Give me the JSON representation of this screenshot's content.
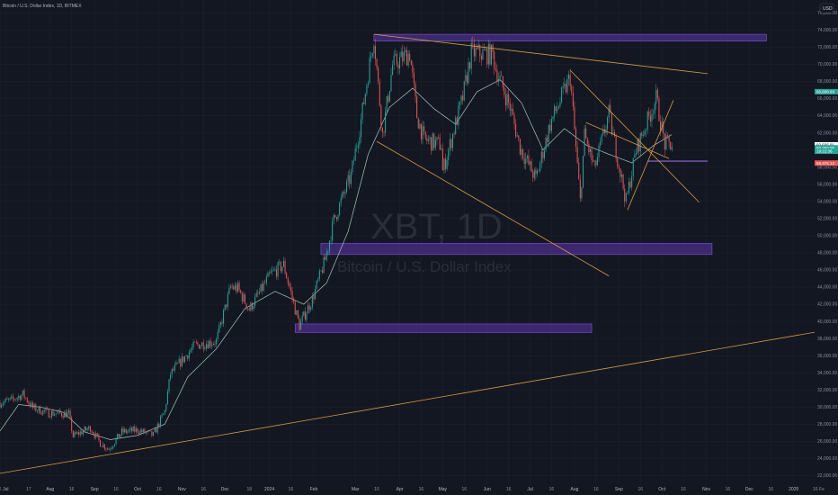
{
  "header": {
    "symbol_title": "Bitcoin / U.S. Dollar Index, 1D, BITMEX",
    "currency_button": "USD"
  },
  "watermark": {
    "ticker": "XBT, 1D",
    "name": "Bitcoin / U.S. Dollar Index"
  },
  "colors": {
    "background": "#131722",
    "candle_up": "#26a69a",
    "candle_down": "#ef5350",
    "ma_line": "#9ec9b9",
    "trendline": "#d9983a",
    "zone_fill": "#4a2f8c",
    "zone_border": "#7e57c2",
    "grid": "#1e222d"
  },
  "price_tags": [
    {
      "label": "66,808.60",
      "value": 66800,
      "color": "#26a69a"
    },
    {
      "label": "60,606.81",
      "value": 60600,
      "color": "#ffffff"
    },
    {
      "label": "60,250.00",
      "value": 60250,
      "color": "#26a69a"
    },
    {
      "label": "19:21:36",
      "value": 59850,
      "color": "#26a69a"
    },
    {
      "label": "58,476.13",
      "value": 58470,
      "color": "#ef5350"
    }
  ],
  "chart_data": {
    "type": "candlestick",
    "title": "Bitcoin / U.S. Dollar Index, 1D, BITMEX",
    "y_axis": {
      "ylim": [
        21000,
        77500
      ],
      "ticks": [
        22000,
        24000,
        26000,
        28000,
        30000,
        32000,
        34000,
        36000,
        38000,
        40000,
        42000,
        44000,
        46000,
        48000,
        50000,
        52000,
        54000,
        56000,
        58000,
        60000,
        62000,
        64000,
        66000,
        68000,
        70000,
        72000,
        74000,
        76000
      ],
      "tick_labels": [
        "22,000.00",
        "24,000.00",
        "26,000.00",
        "28,000.00",
        "30,000.00",
        "32,000.00",
        "34,000.00",
        "36,000.00",
        "38,000.00",
        "40,000.00",
        "42,000.00",
        "44,000.00",
        "46,000.00",
        "48,000.00",
        "50,000.00",
        "52,000.00",
        "54,000.00",
        "56,000.00",
        "58,000.00",
        "60,000.00",
        "62,000.00",
        "64,000.00",
        "66,000.00",
        "68,000.00",
        "70,000.00",
        "72,000.00",
        "74,000.00",
        "76,000.00"
      ]
    },
    "x_axis": {
      "range": [
        "2023-06-27",
        "2025-01-20"
      ],
      "ticks": [
        {
          "date": "2023-06-27",
          "label": "6"
        },
        {
          "date": "2023-07-01",
          "label": "Jul"
        },
        {
          "date": "2023-07-17",
          "label": "17"
        },
        {
          "date": "2023-08-01",
          "label": "Aug"
        },
        {
          "date": "2023-08-16",
          "label": "16"
        },
        {
          "date": "2023-09-01",
          "label": "Sep"
        },
        {
          "date": "2023-09-16",
          "label": "16"
        },
        {
          "date": "2023-10-01",
          "label": "Oct"
        },
        {
          "date": "2023-10-16",
          "label": "16"
        },
        {
          "date": "2023-11-01",
          "label": "Nov"
        },
        {
          "date": "2023-11-16",
          "label": "16"
        },
        {
          "date": "2023-12-01",
          "label": "Dec"
        },
        {
          "date": "2023-12-18",
          "label": "18"
        },
        {
          "date": "2024-01-01",
          "label": "2024"
        },
        {
          "date": "2024-01-16",
          "label": "16"
        },
        {
          "date": "2024-02-01",
          "label": "Feb"
        },
        {
          "date": "2024-03-01",
          "label": "Mar"
        },
        {
          "date": "2024-03-16",
          "label": "16"
        },
        {
          "date": "2024-04-01",
          "label": "Apr"
        },
        {
          "date": "2024-04-16",
          "label": "16"
        },
        {
          "date": "2024-05-01",
          "label": "May"
        },
        {
          "date": "2024-05-16",
          "label": "16"
        },
        {
          "date": "2024-06-01",
          "label": "Jun"
        },
        {
          "date": "2024-06-16",
          "label": "16"
        },
        {
          "date": "2024-07-01",
          "label": "Jul"
        },
        {
          "date": "2024-07-16",
          "label": "16"
        },
        {
          "date": "2024-08-01",
          "label": "Aug"
        },
        {
          "date": "2024-08-16",
          "label": "16"
        },
        {
          "date": "2024-09-01",
          "label": "Sep"
        },
        {
          "date": "2024-09-16",
          "label": "16"
        },
        {
          "date": "2024-10-01",
          "label": "Oct"
        },
        {
          "date": "2024-10-16",
          "label": "16"
        },
        {
          "date": "2024-11-01",
          "label": "Nov"
        },
        {
          "date": "2024-11-16",
          "label": "16"
        },
        {
          "date": "2024-12-01",
          "label": "Dec"
        },
        {
          "date": "2024-12-16",
          "label": "16"
        },
        {
          "date": "2025-01-01",
          "label": "2025"
        },
        {
          "date": "2025-01-16",
          "label": "16"
        }
      ],
      "trailing_label": "Fe"
    },
    "price_keypoints": [
      [
        "2023-06-27",
        30500
      ],
      [
        "2023-07-05",
        30800
      ],
      [
        "2023-07-13",
        31500
      ],
      [
        "2023-07-20",
        29900
      ],
      [
        "2023-07-31",
        29300
      ],
      [
        "2023-08-14",
        29200
      ],
      [
        "2023-08-17",
        26600
      ],
      [
        "2023-08-29",
        27600
      ],
      [
        "2023-09-05",
        25800
      ],
      [
        "2023-09-11",
        25100
      ],
      [
        "2023-09-20",
        27100
      ],
      [
        "2023-10-01",
        27300
      ],
      [
        "2023-10-12",
        26700
      ],
      [
        "2023-10-20",
        29500
      ],
      [
        "2023-10-24",
        33900
      ],
      [
        "2023-11-10",
        37200
      ],
      [
        "2023-11-25",
        37700
      ],
      [
        "2023-12-05",
        44000
      ],
      [
        "2023-12-10",
        43800
      ],
      [
        "2023-12-18",
        41400
      ],
      [
        "2024-01-02",
        45500
      ],
      [
        "2024-01-11",
        46600
      ],
      [
        "2024-01-22",
        39500
      ],
      [
        "2024-01-31",
        42600
      ],
      [
        "2024-02-09",
        47200
      ],
      [
        "2024-02-15",
        51800
      ],
      [
        "2024-02-27",
        57000
      ],
      [
        "2024-03-05",
        63500
      ],
      [
        "2024-03-14",
        73300
      ],
      [
        "2024-03-20",
        61800
      ],
      [
        "2024-03-27",
        69900
      ],
      [
        "2024-04-08",
        71300
      ],
      [
        "2024-04-13",
        64000
      ],
      [
        "2024-04-18",
        61200
      ],
      [
        "2024-04-30",
        60600
      ],
      [
        "2024-05-01",
        57500
      ],
      [
        "2024-05-15",
        66100
      ],
      [
        "2024-05-21",
        71400
      ],
      [
        "2024-06-05",
        71100
      ],
      [
        "2024-06-07",
        69500
      ],
      [
        "2024-06-17",
        65000
      ],
      [
        "2024-06-24",
        60300
      ],
      [
        "2024-07-05",
        56600
      ],
      [
        "2024-07-15",
        63000
      ],
      [
        "2024-07-29",
        68500
      ],
      [
        "2024-08-05",
        54000
      ],
      [
        "2024-08-08",
        61700
      ],
      [
        "2024-08-15",
        57800
      ],
      [
        "2024-08-25",
        64200
      ],
      [
        "2024-09-06",
        54000
      ],
      [
        "2024-09-13",
        60000
      ],
      [
        "2024-09-27",
        66000
      ],
      [
        "2024-10-03",
        60700
      ],
      [
        "2024-10-08",
        60600
      ]
    ],
    "moving_average_keypoints": [
      [
        "2023-06-27",
        27200
      ],
      [
        "2023-07-10",
        30300
      ],
      [
        "2023-07-25",
        30000
      ],
      [
        "2023-08-10",
        29400
      ],
      [
        "2023-08-25",
        27100
      ],
      [
        "2023-09-12",
        26200
      ],
      [
        "2023-10-01",
        26700
      ],
      [
        "2023-10-20",
        28000
      ],
      [
        "2023-11-05",
        33500
      ],
      [
        "2023-11-25",
        36800
      ],
      [
        "2023-12-15",
        41500
      ],
      [
        "2024-01-05",
        43500
      ],
      [
        "2024-01-25",
        42000
      ],
      [
        "2024-02-10",
        44500
      ],
      [
        "2024-02-25",
        50500
      ],
      [
        "2024-03-10",
        59500
      ],
      [
        "2024-03-25",
        65000
      ],
      [
        "2024-04-10",
        67200
      ],
      [
        "2024-04-25",
        64800
      ],
      [
        "2024-05-10",
        63000
      ],
      [
        "2024-05-25",
        66800
      ],
      [
        "2024-06-10",
        68200
      ],
      [
        "2024-06-25",
        65500
      ],
      [
        "2024-07-10",
        60000
      ],
      [
        "2024-07-25",
        62500
      ],
      [
        "2024-08-10",
        60500
      ],
      [
        "2024-08-25",
        59500
      ],
      [
        "2024-09-10",
        58500
      ],
      [
        "2024-09-25",
        60500
      ],
      [
        "2024-10-08",
        61800
      ]
    ],
    "support_resistance_zones": [
      {
        "from": "2024-03-14",
        "to": "2024-12-13",
        "low": 72700,
        "high": 73500
      },
      {
        "from": "2024-02-06",
        "to": "2024-11-05",
        "low": 47800,
        "high": 49100
      },
      {
        "from": "2024-01-19",
        "to": "2024-08-13",
        "low": 38700,
        "high": 39700
      }
    ],
    "horizontal_levels": [
      {
        "from": "2024-09-21",
        "to": "2024-11-02",
        "value": 58700
      }
    ],
    "trendlines": [
      {
        "from": [
          "2024-03-14",
          73500
        ],
        "to": [
          "2024-11-02",
          68900
        ]
      },
      {
        "from": [
          "2024-03-16",
          61000
        ],
        "to": [
          "2024-08-25",
          45300
        ]
      },
      {
        "from": [
          "2024-07-29",
          69300
        ],
        "to": [
          "2024-10-27",
          53900
        ]
      },
      {
        "from": [
          "2024-08-09",
          63200
        ],
        "to": [
          "2024-10-06",
          59000
        ]
      },
      {
        "from": [
          "2024-09-07",
          53000
        ],
        "to": [
          "2024-10-09",
          65800
        ]
      },
      {
        "from": [
          "2023-06-25",
          22200
        ],
        "to": [
          "2025-01-18",
          38800
        ]
      }
    ]
  }
}
